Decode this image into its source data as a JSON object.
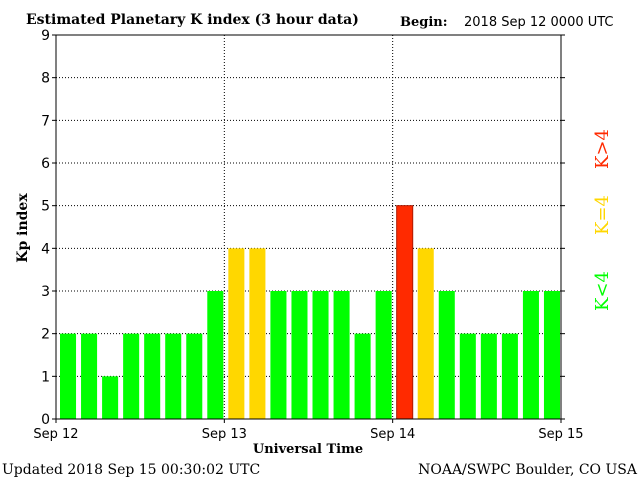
{
  "header": {
    "title": "Estimated Planetary K index (3 hour data)",
    "begin_label": "Begin:",
    "begin_value": "2018 Sep 12 0000 UTC"
  },
  "footer": {
    "updated": "Updated 2018 Sep 15 00:30:02 UTC",
    "source": "NOAA/SWPC Boulder, CO USA"
  },
  "legend": {
    "high": "K>4",
    "mid": "K=4",
    "low": "K<4"
  },
  "colors": {
    "low": "#00ff00",
    "mid": "#ffd700",
    "high": "#ff2a00",
    "grid": "#000000"
  },
  "chart_data": {
    "type": "bar",
    "title": "Estimated Planetary K index (3 hour data)",
    "xlabel": "Universal Time",
    "ylabel": "Kp index",
    "ylim": [
      0,
      9
    ],
    "yticks": [
      "0",
      "1",
      "2",
      "3",
      "4",
      "5",
      "6",
      "7",
      "8",
      "9"
    ],
    "xticks": [
      "Sep 12",
      "Sep 13",
      "Sep 14",
      "Sep 15"
    ],
    "values": [
      2,
      2,
      1,
      2,
      2,
      2,
      2,
      3,
      4,
      4,
      3,
      3,
      3,
      3,
      2,
      3,
      5,
      4,
      3,
      2,
      2,
      2,
      3,
      3
    ],
    "interval_hours": 3,
    "grid": true
  }
}
